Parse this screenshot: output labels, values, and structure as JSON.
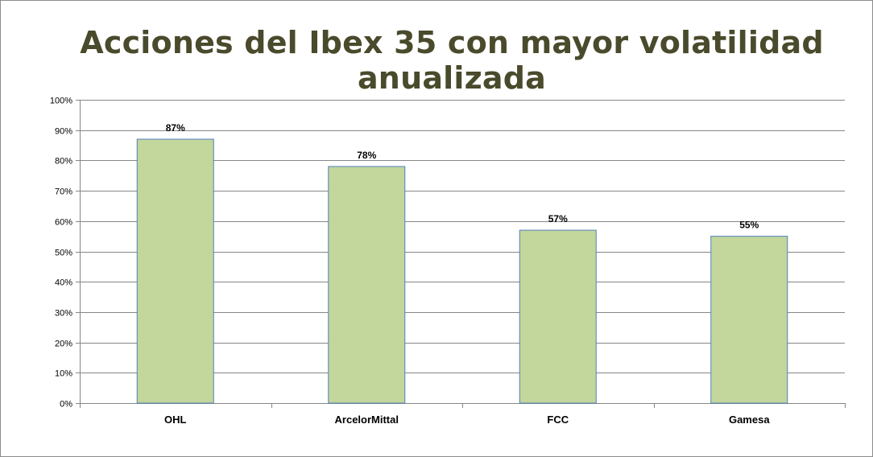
{
  "chart_data": {
    "type": "bar",
    "title": "Acciones del Ibex 35 con mayor volatilidad anualizada",
    "categories": [
      "OHL",
      "ArcelorMittal",
      "FCC",
      "Gamesa"
    ],
    "series": [
      {
        "values": [
          87,
          78,
          57,
          55
        ]
      }
    ],
    "data_labels": [
      "87%",
      "78%",
      "57%",
      "55%"
    ],
    "y_ticks": [
      0,
      10,
      20,
      30,
      40,
      50,
      60,
      70,
      80,
      90,
      100
    ],
    "y_tick_labels": [
      "0%",
      "10%",
      "20%",
      "30%",
      "40%",
      "50%",
      "60%",
      "70%",
      "80%",
      "90%",
      "100%"
    ],
    "ylim": [
      0,
      100
    ],
    "xlabel": "",
    "ylabel": "",
    "grid": true,
    "legend": "none",
    "colors": {
      "bar_fill": "#c3d69b",
      "bar_stroke": "#4f81bd",
      "gridline": "#868686",
      "title": "#4a4a2c"
    }
  }
}
